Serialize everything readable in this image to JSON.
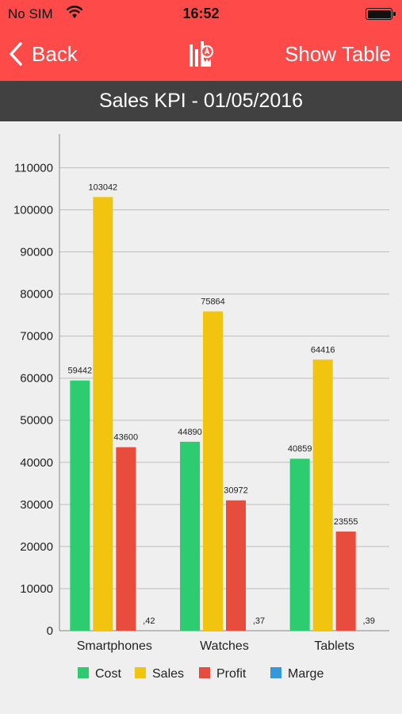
{
  "status_bar": {
    "carrier": "No SIM",
    "time": "16:52"
  },
  "nav": {
    "back_label": "Back",
    "show_table_label": "Show Table",
    "center_icon": "chart-report-icon",
    "accent_color": "#ff4a4a"
  },
  "title": "Sales KPI - 01/05/2016",
  "chart_data": {
    "type": "bar",
    "categories": [
      "Smartphones",
      "Watches",
      "Tablets"
    ],
    "series": [
      {
        "name": "Cost",
        "color": "#2ecc71",
        "values": [
          59442,
          44890,
          40859
        ],
        "labels": [
          "59442",
          "44890",
          "40859"
        ]
      },
      {
        "name": "Sales",
        "color": "#f1c40f",
        "values": [
          103042,
          75864,
          64416
        ],
        "labels": [
          "103042",
          "75864",
          "64416"
        ]
      },
      {
        "name": "Profit",
        "color": "#e74c3c",
        "values": [
          43600,
          30972,
          23555
        ],
        "labels": [
          "43600",
          "30972",
          "23555"
        ]
      },
      {
        "name": "Marge",
        "color": "#3498db",
        "values": [
          0.42,
          0.37,
          0.39
        ],
        "labels": [
          ",42",
          ",37",
          ",39"
        ]
      }
    ],
    "ylim": [
      0,
      118000
    ],
    "yticks": [
      "0",
      "10000",
      "20000",
      "30000",
      "40000",
      "50000",
      "60000",
      "70000",
      "80000",
      "90000",
      "100000",
      "110000"
    ],
    "grid": true,
    "legend": "bottom"
  }
}
